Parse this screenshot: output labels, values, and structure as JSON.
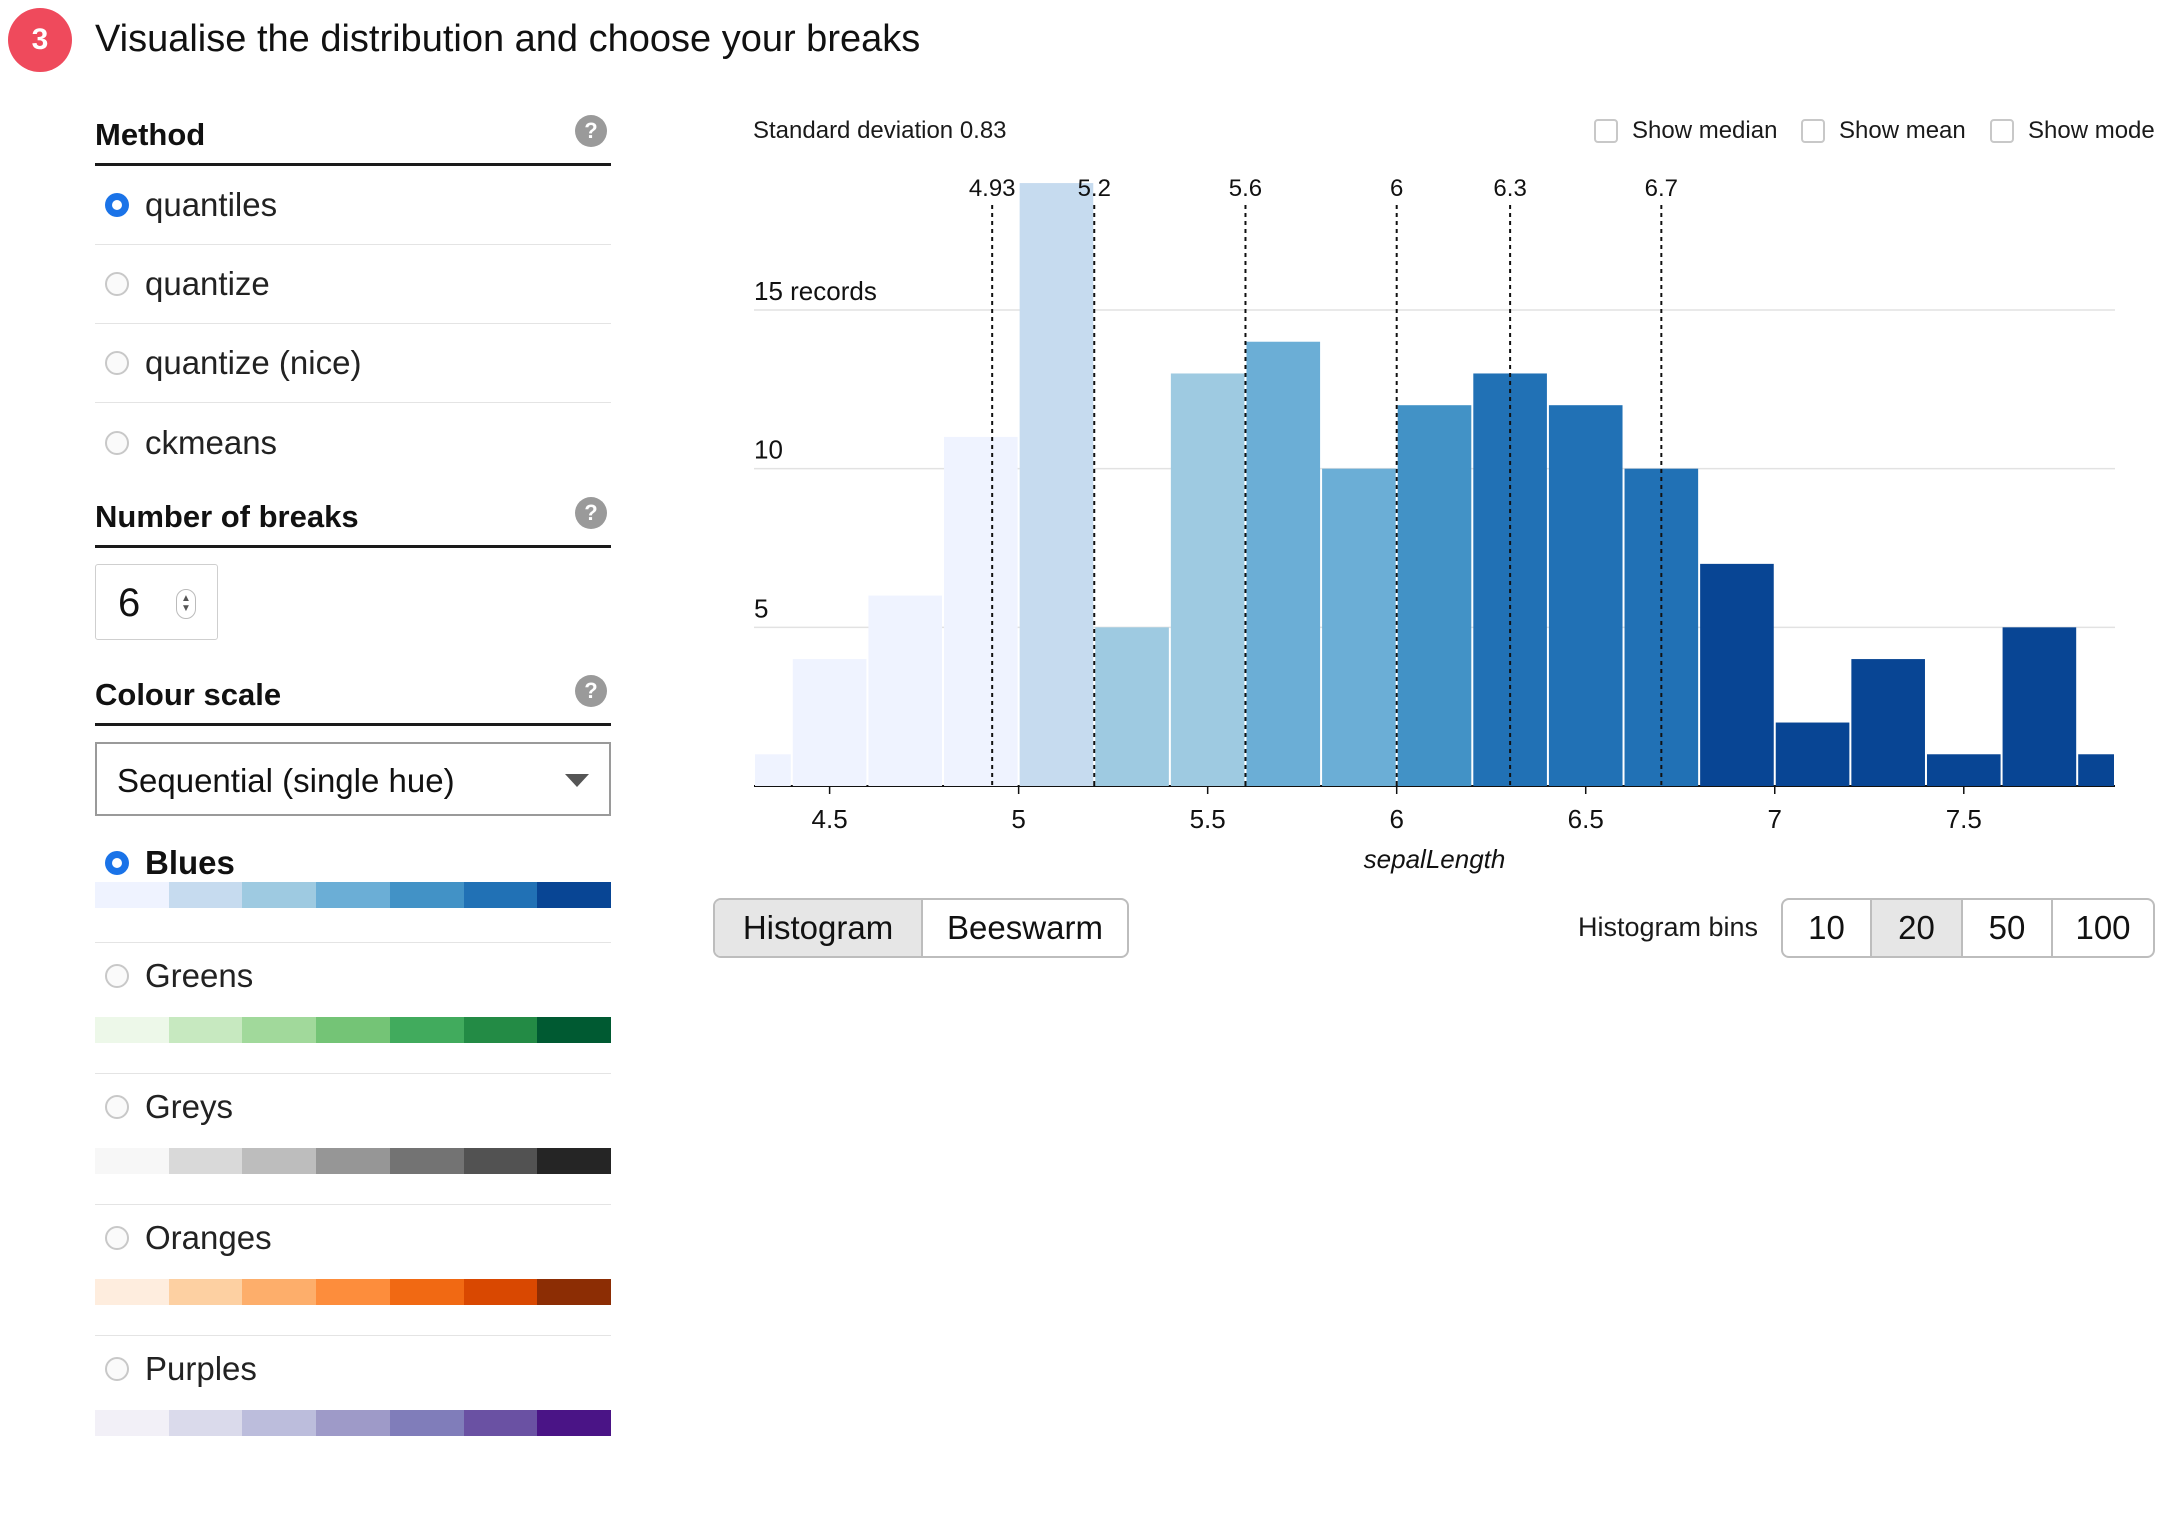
{
  "header": {
    "step_number": "3",
    "title": "Visualise the distribution and choose your breaks"
  },
  "method": {
    "label": "Method",
    "help": "?",
    "options": [
      {
        "label": "quantiles",
        "checked": true
      },
      {
        "label": "quantize",
        "checked": false
      },
      {
        "label": "quantize (nice)",
        "checked": false
      },
      {
        "label": "ckmeans",
        "checked": false
      }
    ]
  },
  "breaks": {
    "label": "Number of breaks",
    "help": "?",
    "value": "6"
  },
  "colour": {
    "label": "Colour scale",
    "help": "?",
    "selected": "Sequential (single hue)",
    "schemes": [
      {
        "name": "Blues",
        "selected": true,
        "colors": [
          "#eff3ff",
          "#c6dbef",
          "#9ecae1",
          "#6baed6",
          "#4292c6",
          "#2171b5",
          "#084594"
        ]
      },
      {
        "name": "Greens",
        "selected": false,
        "colors": [
          "#edf8e9",
          "#c7e9c0",
          "#a1d99b",
          "#74c476",
          "#41ab5d",
          "#238b45",
          "#005a32"
        ]
      },
      {
        "name": "Greys",
        "selected": false,
        "colors": [
          "#f7f7f7",
          "#d9d9d9",
          "#bdbdbd",
          "#969696",
          "#737373",
          "#525252",
          "#252525"
        ]
      },
      {
        "name": "Oranges",
        "selected": false,
        "colors": [
          "#feedde",
          "#fdd0a2",
          "#fdae6b",
          "#fd8d3c",
          "#f16913",
          "#d94801",
          "#8c2d04"
        ]
      },
      {
        "name": "Purples",
        "selected": false,
        "colors": [
          "#f2f0f7",
          "#dadaeb",
          "#bcbddc",
          "#9e9ac8",
          "#807dba",
          "#6a51a3",
          "#4a1486"
        ]
      }
    ]
  },
  "stats": {
    "std_dev": "Standard deviation 0.83"
  },
  "toggles": {
    "median": "Show median",
    "mean": "Show mean",
    "mode": "Show mode"
  },
  "view": {
    "histogram": "Histogram",
    "beeswarm": "Beeswarm",
    "active": "Histogram"
  },
  "bins": {
    "label": "Histogram bins",
    "options": [
      "10",
      "20",
      "50",
      "100"
    ],
    "active": "20"
  },
  "chart_data": {
    "type": "bar",
    "xlabel": "sepalLength",
    "ylabel": "",
    "xlim": [
      4.3,
      7.9
    ],
    "ylim": [
      0,
      15
    ],
    "x_ticks": [
      4.5,
      5,
      5.5,
      6,
      6.5,
      7,
      7.5
    ],
    "x_tick_labels": [
      "4.5",
      "5",
      "5.5",
      "6",
      "6.5",
      "7",
      "7.5"
    ],
    "y_ticks": [
      0,
      5,
      10,
      15
    ],
    "y_tick_labels": [
      "0",
      "5",
      "10",
      "15 records"
    ],
    "bin_edges": [
      4.3,
      4.4,
      4.6,
      4.8,
      5.0,
      5.2,
      5.4,
      5.6,
      5.8,
      6.0,
      6.2,
      6.4,
      6.6,
      6.8,
      7.0,
      7.2,
      7.4,
      7.6,
      7.8,
      7.9
    ],
    "counts": [
      1,
      4,
      6,
      11,
      19,
      5,
      13,
      14,
      10,
      12,
      13,
      12,
      10,
      7,
      2,
      4,
      1,
      5,
      1
    ],
    "breaks": [
      4.93,
      5.2,
      5.6,
      6,
      6.3,
      6.7
    ],
    "break_labels": [
      "4.93",
      "5.2",
      "5.6",
      "6",
      "6.3",
      "6.7"
    ],
    "colors": [
      "#eff3ff",
      "#c6dbef",
      "#9ecae1",
      "#6baed6",
      "#4292c6",
      "#2171b5",
      "#084594"
    ],
    "grid": true
  }
}
